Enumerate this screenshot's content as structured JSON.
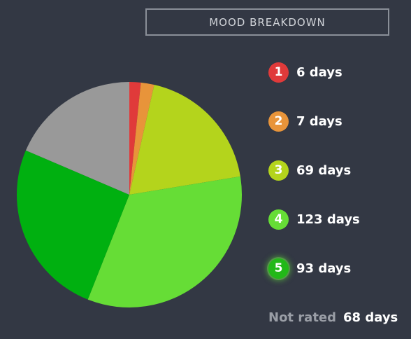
{
  "header": {
    "title": "MOOD BREAKDOWN"
  },
  "chart_data": {
    "type": "pie",
    "slices": [
      {
        "label": "1",
        "value": 6,
        "text": "6 days",
        "color": "#e03a3a"
      },
      {
        "label": "2",
        "value": 7,
        "text": "7 days",
        "color": "#e8943a"
      },
      {
        "label": "3",
        "value": 69,
        "text": "69 days",
        "color": "#b4d41c"
      },
      {
        "label": "4",
        "value": 123,
        "text": "123 days",
        "color": "#66dd36"
      },
      {
        "label": "5",
        "value": 93,
        "text": "93 days",
        "color": "#00b010"
      },
      {
        "label": "Not rated",
        "value": 68,
        "text": "68 days",
        "color": "#999999"
      }
    ]
  },
  "legend": {
    "not_rated_label": "Not rated",
    "not_rated_value": "68 days"
  }
}
